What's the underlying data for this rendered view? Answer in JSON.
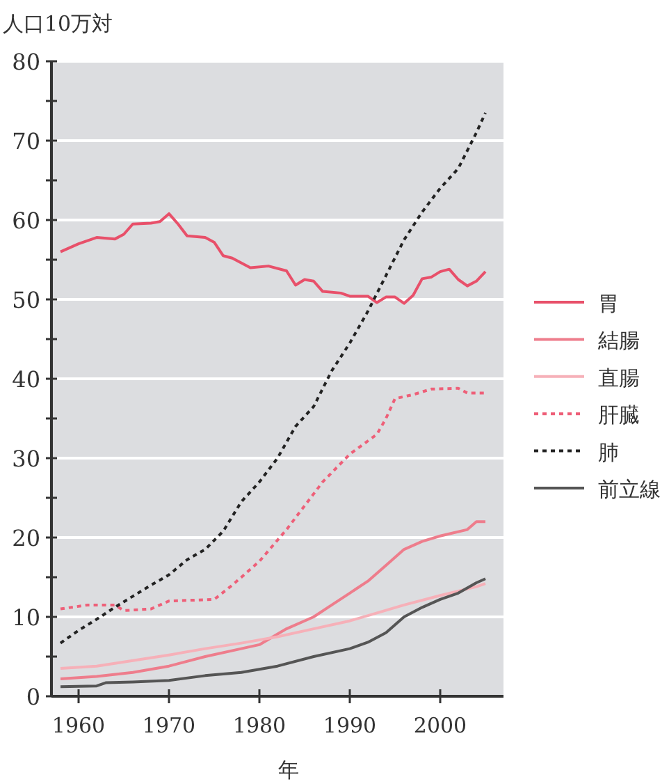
{
  "chart_data": {
    "type": "line",
    "ylabel": "人口10万対",
    "xlabel": "年",
    "xlim": [
      1957,
      2007
    ],
    "xticks": [
      1960,
      1970,
      1980,
      1990,
      2000
    ],
    "ylim": [
      0,
      80
    ],
    "yticks": [
      0,
      {
        "value": 5,
        "label": null
      },
      10,
      {
        "value": 15,
        "label": null
      },
      20,
      {
        "value": 25,
        "label": null
      },
      30,
      {
        "value": 35,
        "label": null
      },
      40,
      {
        "value": 45,
        "label": null
      },
      50,
      {
        "value": 55,
        "label": null
      },
      60,
      {
        "value": 65,
        "label": null
      },
      70,
      {
        "value": 75,
        "label": null
      },
      80
    ],
    "grid": "y",
    "legend": "right",
    "marker": "none",
    "series": [
      {
        "name": "胃",
        "color": "#e8506a",
        "line_style": "solid",
        "x": [
          1958,
          1960,
          1962,
          1964,
          1965,
          1966,
          1968,
          1969,
          1970,
          1971,
          1972,
          1974,
          1975,
          1976,
          1977,
          1979,
          1981,
          1983,
          1984,
          1985,
          1986,
          1987,
          1989,
          1990,
          1992,
          1993,
          1994,
          1995,
          1996,
          1997,
          1998,
          1999,
          2000,
          2001,
          2002,
          2003,
          2004,
          2005
        ],
        "values": [
          56,
          57,
          57.8,
          57.6,
          58.2,
          59.5,
          59.6,
          59.8,
          60.8,
          59.5,
          58,
          57.8,
          57.2,
          55.5,
          55.2,
          54,
          54.2,
          53.6,
          51.8,
          52.5,
          52.3,
          51,
          50.8,
          50.4,
          50.4,
          49.6,
          50.3,
          50.3,
          49.5,
          50.5,
          52.6,
          52.8,
          53.5,
          53.8,
          52.5,
          51.7,
          52.3,
          53.5
        ]
      },
      {
        "name": "結腸",
        "color": "#ee7d8c",
        "line_style": "solid",
        "x": [
          1958,
          1962,
          1966,
          1970,
          1974,
          1978,
          1980,
          1983,
          1986,
          1988,
          1990,
          1992,
          1994,
          1996,
          1998,
          2000,
          2003,
          2004,
          2005
        ],
        "values": [
          2.2,
          2.5,
          3,
          3.8,
          5,
          6,
          6.5,
          8.5,
          10,
          11.5,
          13,
          14.5,
          16.5,
          18.5,
          19.5,
          20.2,
          21,
          22,
          22
        ]
      },
      {
        "name": "直腸",
        "color": "#f6b0b8",
        "line_style": "solid",
        "x": [
          1958,
          1962,
          1966,
          1970,
          1974,
          1978,
          1982,
          1986,
          1990,
          1993,
          1996,
          2000,
          2004,
          2005
        ],
        "values": [
          3.5,
          3.8,
          4.5,
          5.2,
          6,
          6.7,
          7.5,
          8.5,
          9.5,
          10.5,
          11.5,
          12.7,
          13.8,
          14.2
        ]
      },
      {
        "name": "肝臓",
        "color": "#ee5f78",
        "line_style": "dotted",
        "x": [
          1958,
          1961,
          1964,
          1965,
          1968,
          1970,
          1975,
          1977,
          1980,
          1983,
          1985,
          1987,
          1990,
          1993,
          1994,
          1995,
          1997,
          1999,
          2002,
          2003,
          2005
        ],
        "values": [
          11,
          11.5,
          11.5,
          10.8,
          11,
          12,
          12.2,
          14,
          17,
          21,
          24,
          27,
          30.5,
          33,
          35,
          37.5,
          38,
          38.7,
          38.8,
          38.2,
          38.2
        ]
      },
      {
        "name": "肺",
        "color": "#222222",
        "line_style": "dotted",
        "x": [
          1958,
          1960,
          1962,
          1964,
          1966,
          1968,
          1970,
          1972,
          1974,
          1976,
          1978,
          1980,
          1982,
          1984,
          1986,
          1988,
          1990,
          1992,
          1994,
          1996,
          1998,
          2000,
          2002,
          2004,
          2005
        ],
        "values": [
          6.7,
          8.3,
          9.7,
          11.2,
          12.6,
          14,
          15.3,
          17.2,
          18.5,
          20.8,
          24.5,
          27,
          30,
          34,
          36.5,
          41,
          44.5,
          48.5,
          53,
          57.5,
          61,
          64,
          66.5,
          71,
          73.5
        ]
      },
      {
        "name": "前立線",
        "color": "#555555",
        "line_style": "solid",
        "x": [
          1958,
          1962,
          1963,
          1966,
          1970,
          1974,
          1978,
          1982,
          1986,
          1990,
          1992,
          1994,
          1996,
          1998,
          2000,
          2002,
          2004,
          2005
        ],
        "values": [
          1.2,
          1.3,
          1.7,
          1.8,
          2,
          2.6,
          3,
          3.8,
          5,
          6,
          6.8,
          8,
          10,
          11.2,
          12.2,
          13,
          14.3,
          14.8
        ]
      }
    ]
  }
}
